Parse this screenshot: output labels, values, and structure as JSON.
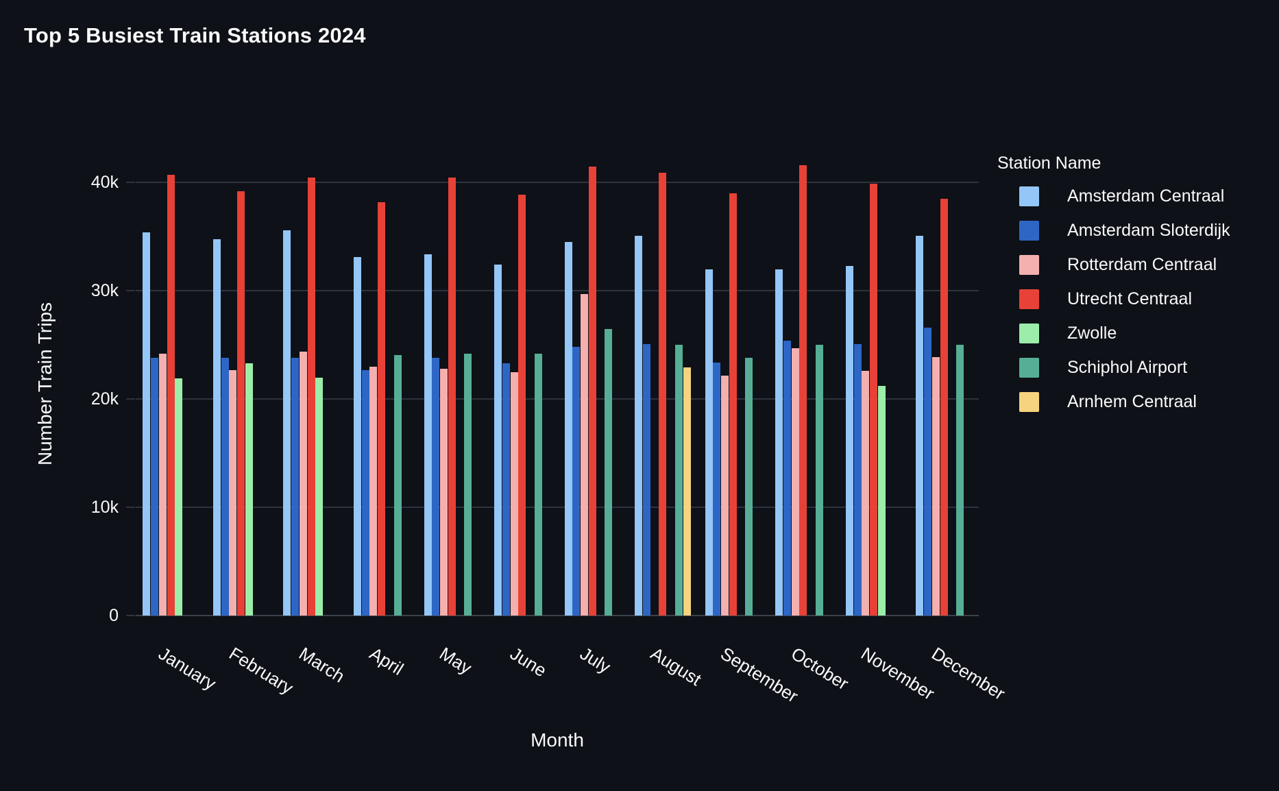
{
  "chart_data": {
    "type": "bar",
    "title": "Top 5 Busiest Train Stations 2024",
    "xlabel": "Month",
    "ylabel": "Number Train Trips",
    "legend_title": "Station Name",
    "grid": true,
    "legend_position": "right",
    "ylim": [
      0,
      44000
    ],
    "y_ticks": [
      {
        "value": 0,
        "label": "0"
      },
      {
        "value": 10000,
        "label": "10k"
      },
      {
        "value": 20000,
        "label": "20k"
      },
      {
        "value": 30000,
        "label": "30k"
      },
      {
        "value": 40000,
        "label": "40k"
      }
    ],
    "categories": [
      "January",
      "February",
      "March",
      "April",
      "May",
      "June",
      "July",
      "August",
      "September",
      "October",
      "November",
      "December"
    ],
    "series": [
      {
        "name": "Amsterdam Centraal",
        "color": "#94c6f7",
        "values": [
          35400,
          34800,
          35600,
          33100,
          33400,
          32400,
          34500,
          35100,
          32000,
          32000,
          32300,
          35100
        ]
      },
      {
        "name": "Amsterdam Sloterdijk",
        "color": "#2e66c6",
        "values": [
          23800,
          23800,
          23800,
          22700,
          23800,
          23300,
          24800,
          25100,
          23400,
          25400,
          25100,
          26600
        ]
      },
      {
        "name": "Rotterdam Centraal",
        "color": "#f4b0af",
        "values": [
          24200,
          22700,
          24400,
          23000,
          22800,
          22500,
          29700,
          null,
          22200,
          24700,
          22600,
          23900
        ]
      },
      {
        "name": "Utrecht Centraal",
        "color": "#e84138",
        "values": [
          40700,
          39200,
          40500,
          38200,
          40500,
          38900,
          41500,
          40900,
          39000,
          41600,
          39900,
          38500
        ]
      },
      {
        "name": "Zwolle",
        "color": "#9cedaa",
        "values": [
          21900,
          23300,
          22000,
          null,
          null,
          null,
          null,
          null,
          null,
          null,
          21200,
          null
        ]
      },
      {
        "name": "Schiphol Airport",
        "color": "#56ae97",
        "values": [
          null,
          null,
          null,
          24100,
          24200,
          24200,
          26500,
          25000,
          23800,
          25000,
          null,
          25000
        ]
      },
      {
        "name": "Arnhem Centraal",
        "color": "#f6d37f",
        "values": [
          null,
          null,
          null,
          null,
          null,
          null,
          null,
          22900,
          null,
          null,
          null,
          null
        ]
      }
    ],
    "colors": {
      "background": "#0e1117",
      "text": "#fafafa",
      "gridline": "#2e333e",
      "axis_line": "#3d414a"
    }
  }
}
